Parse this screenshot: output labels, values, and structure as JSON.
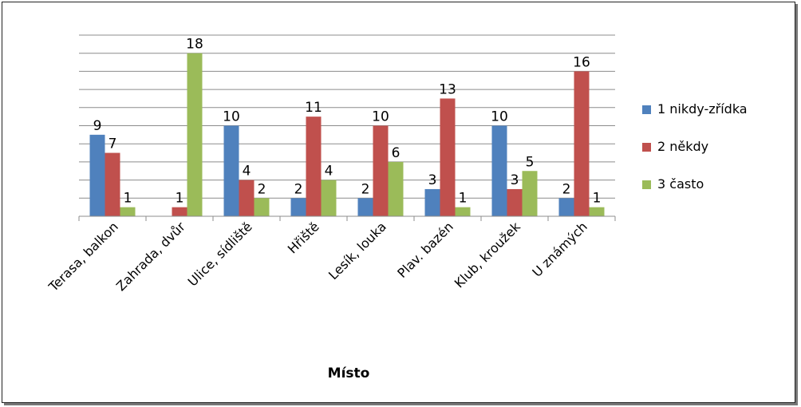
{
  "chart_data": {
    "type": "bar",
    "xlabel": "Místo",
    "ylabel": "",
    "ylim": [
      0,
      20
    ],
    "grid": true,
    "legend_position": "right",
    "categories": [
      "Terasa, balkon",
      "Zahrada, dvůr",
      "Ulice, sídliště",
      "Hřiště",
      "Lesík, louka",
      "Plav. bazén",
      "Klub, kroužek",
      "U známých"
    ],
    "series": [
      {
        "name": "1 nikdy-zřídka",
        "color": "#4f81bd",
        "values": [
          9,
          null,
          10,
          2,
          2,
          3,
          10,
          2
        ]
      },
      {
        "name": "2 někdy",
        "color": "#c0504d",
        "values": [
          7,
          1,
          4,
          11,
          10,
          13,
          3,
          16
        ]
      },
      {
        "name": "3 často",
        "color": "#9bbb59",
        "values": [
          1,
          18,
          2,
          4,
          6,
          1,
          5,
          1
        ]
      }
    ]
  }
}
